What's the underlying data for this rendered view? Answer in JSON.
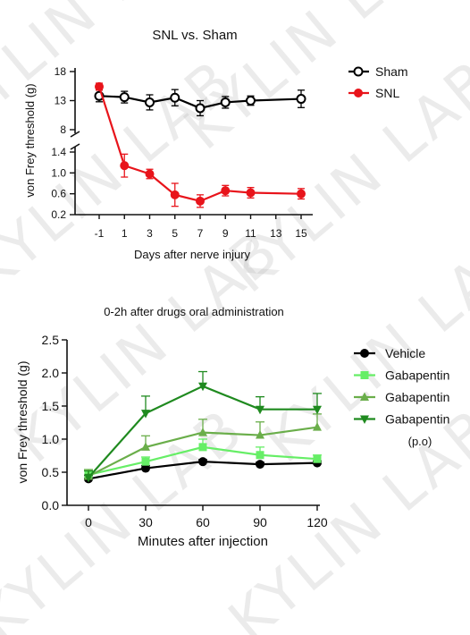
{
  "watermark": {
    "text": "KYLIN LAB"
  },
  "chart_data": [
    {
      "type": "line",
      "title": "SNL vs. Sham",
      "xlabel": "Days after nerve injury",
      "ylabel": "von Frey threshold (g)",
      "x": [
        -1,
        1,
        3,
        5,
        7,
        9,
        11,
        13,
        15
      ],
      "x_ticks": [
        "-1",
        "1",
        "3",
        "5",
        "7",
        "9",
        "11",
        "13",
        "15"
      ],
      "y_axis_broken": true,
      "y_segments": [
        {
          "range": [
            0.2,
            1.4
          ],
          "ticks": [
            "0.2",
            "0.6",
            "1.0",
            "1.4"
          ]
        },
        {
          "range": [
            8,
            18
          ],
          "ticks": [
            "8",
            "13",
            "18"
          ]
        }
      ],
      "grid": false,
      "legend_position": "right",
      "series": [
        {
          "name": "Sham",
          "color": "#000000",
          "marker": "open-circle",
          "x": [
            -1,
            1,
            3,
            5,
            7,
            9,
            11,
            15
          ],
          "values": [
            13.8,
            13.6,
            12.7,
            13.5,
            11.7,
            12.7,
            13.0,
            13.3
          ],
          "errors": [
            1.0,
            1.0,
            1.3,
            1.4,
            1.3,
            1.0,
            0.8,
            1.5
          ]
        },
        {
          "name": "SNL",
          "color": "#e8141b",
          "marker": "filled-circle",
          "x": [
            -1,
            1,
            3,
            5,
            7,
            9,
            11,
            15
          ],
          "values": [
            15.4,
            1.14,
            0.98,
            0.58,
            0.46,
            0.66,
            0.62,
            0.6
          ],
          "errors": [
            0.6,
            0.22,
            0.09,
            0.22,
            0.12,
            0.1,
            0.1,
            0.1
          ]
        }
      ]
    },
    {
      "type": "line",
      "title": "0-2h after drugs oral administration",
      "xlabel": "Minutes after injection",
      "ylabel": "von Frey threshold (g)",
      "x": [
        0,
        30,
        60,
        90,
        120
      ],
      "x_ticks": [
        "0",
        "30",
        "60",
        "90",
        "120"
      ],
      "y_ticks": [
        "0.0",
        "0.5",
        "1.0",
        "1.5",
        "2.0",
        "2.5"
      ],
      "ylim": [
        0,
        2.5
      ],
      "grid": false,
      "legend_position": "right",
      "legend_note": "(p.o)",
      "series": [
        {
          "name": "Vehicle",
          "color": "#000000",
          "marker": "circle",
          "values": [
            0.4,
            0.56,
            0.66,
            0.62,
            0.64
          ],
          "errors": [
            0.05,
            0.04,
            0.03,
            0.03,
            0.03
          ]
        },
        {
          "name": "Gabapentin",
          "color": "#66ee66",
          "marker": "square",
          "values": [
            0.46,
            0.66,
            0.88,
            0.76,
            0.7
          ],
          "errors": [
            0.08,
            0.07,
            0.12,
            0.12,
            0.06
          ]
        },
        {
          "name": "Gabapentin",
          "color": "#6aae4a",
          "marker": "triangle-up",
          "values": [
            0.44,
            0.88,
            1.1,
            1.06,
            1.18
          ],
          "errors": [
            0.1,
            0.17,
            0.2,
            0.2,
            0.2
          ]
        },
        {
          "name": "Gabapentin",
          "color": "#1f8a1f",
          "marker": "triangle-down",
          "values": [
            0.42,
            1.39,
            1.8,
            1.45,
            1.45
          ],
          "errors": [
            0.1,
            0.26,
            0.22,
            0.19,
            0.24
          ]
        }
      ]
    }
  ]
}
